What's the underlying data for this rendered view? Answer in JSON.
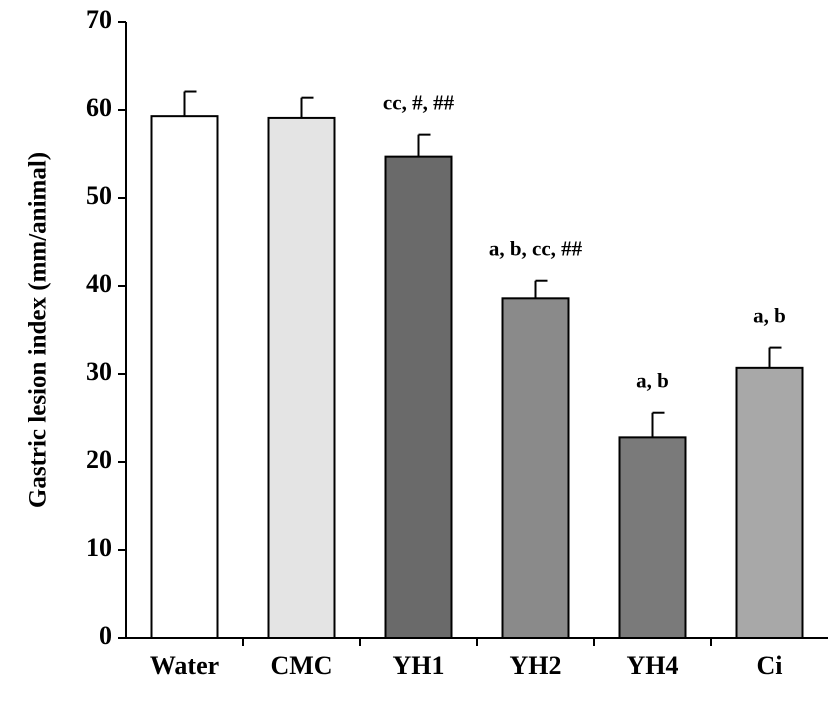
{
  "chart_data": {
    "type": "bar",
    "y_label": "Gastric lesion index (mm/animal)",
    "categories": [
      "Water",
      "CMC",
      "YH1",
      "YH2",
      "YH4",
      "Ci"
    ],
    "values": [
      59.3,
      59.1,
      54.7,
      38.6,
      22.8,
      30.7
    ],
    "errors": [
      2.8,
      2.3,
      2.5,
      2.0,
      2.8,
      2.3
    ],
    "annotations": [
      null,
      null,
      "cc, #, ##",
      "a, b, cc, ##",
      "a, b",
      "a, b"
    ],
    "colors": [
      "#ffffff",
      "#e4e4e4",
      "#6a6a6a",
      "#8a8a8a",
      "#7a7a7a",
      "#a8a8a8"
    ],
    "ylim": [
      0,
      70
    ],
    "yticks": [
      0,
      10,
      20,
      30,
      40,
      50,
      60,
      70
    ]
  }
}
